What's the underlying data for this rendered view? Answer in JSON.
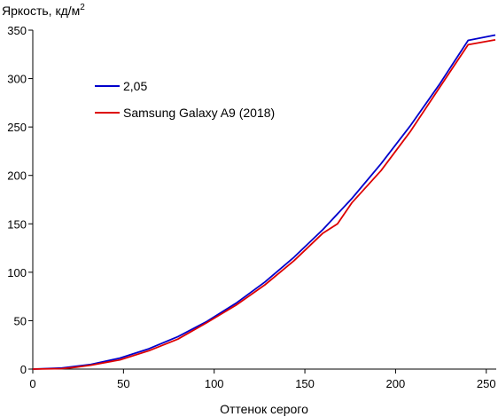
{
  "chart_data": {
    "type": "line",
    "title": "",
    "ylabel": "Яркость, кд/м",
    "ylabel_sup": "2",
    "xlabel": "Оттенок серого",
    "xlim": [
      0,
      255
    ],
    "ylim": [
      0,
      350
    ],
    "xticks": [
      0,
      50,
      100,
      150,
      200,
      250
    ],
    "yticks": [
      0,
      50,
      100,
      150,
      200,
      250,
      300,
      350
    ],
    "grid": false,
    "legend_position": "upper-left",
    "series": [
      {
        "name": "2,05",
        "color": "#0000cc",
        "x": [
          0,
          16,
          32,
          48,
          64,
          80,
          96,
          112,
          128,
          144,
          160,
          176,
          192,
          208,
          224,
          240,
          255
        ],
        "y": [
          0,
          1.1,
          4.8,
          11.4,
          21.0,
          33.5,
          49.2,
          68.0,
          90.0,
          115.5,
          144.2,
          176.4,
          212.0,
          251.0,
          293.5,
          339.5,
          345.0
        ]
      },
      {
        "name": "Samsung Galaxy A9 (2018)",
        "color": "#dd0000",
        "x": [
          0,
          16,
          24,
          32,
          48,
          64,
          80,
          96,
          112,
          128,
          144,
          160,
          168,
          176,
          192,
          208,
          224,
          240,
          255
        ],
        "y": [
          0,
          0.5,
          2.0,
          4.0,
          9.5,
          19.0,
          31.0,
          48.0,
          66.0,
          87.0,
          112.0,
          140.5,
          150.0,
          172.0,
          205.0,
          245.0,
          290.0,
          335.0,
          340.0
        ]
      }
    ]
  }
}
